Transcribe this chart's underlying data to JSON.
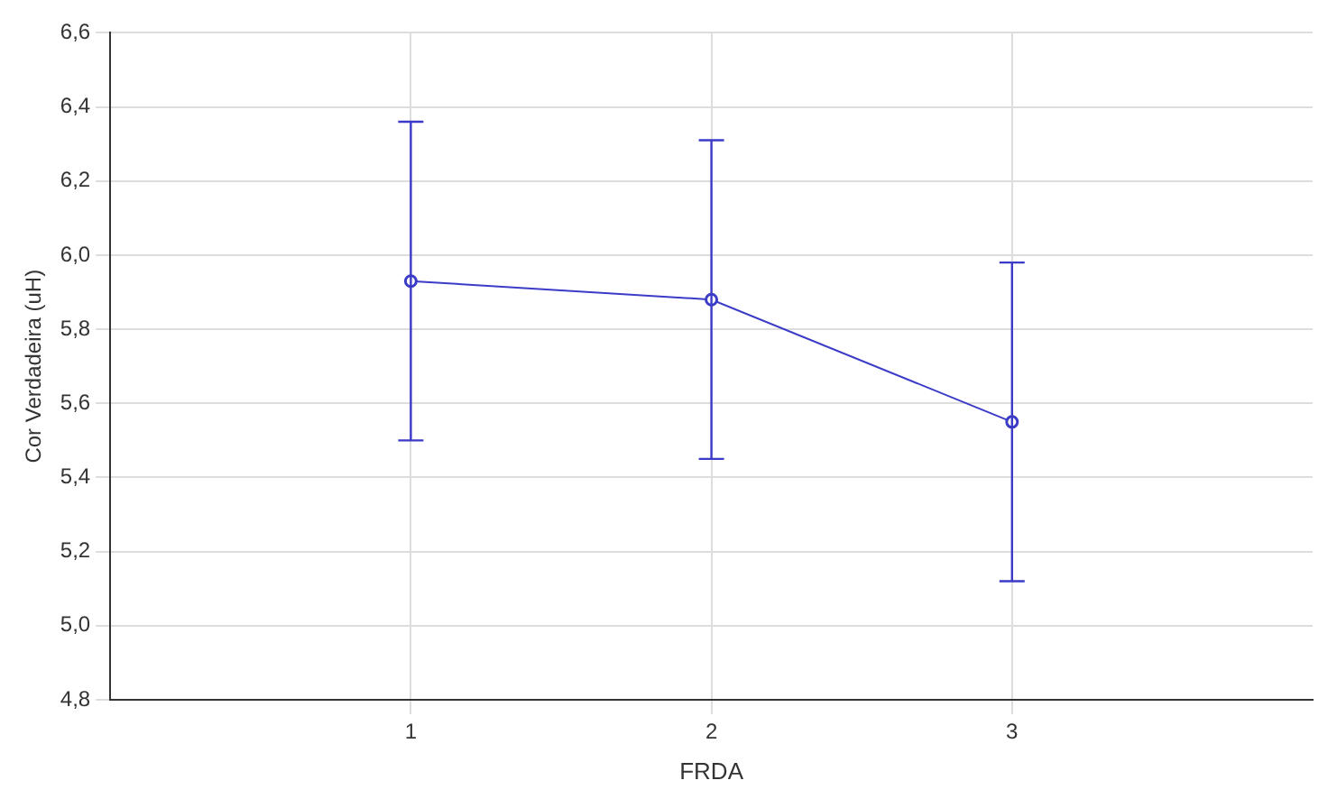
{
  "chart_data": {
    "type": "line",
    "xlabel": "FRDA",
    "ylabel": "Cor Verdadeira (uH)",
    "x": [
      1,
      2,
      3
    ],
    "series": [
      {
        "color": "#3b3bc8",
        "values": [
          5.93,
          5.88,
          5.55
        ],
        "errors": [
          0.43,
          0.43,
          0.43
        ]
      }
    ],
    "xlim": [
      0,
      4
    ],
    "xticks": [
      1,
      2,
      3
    ],
    "ylim": [
      4.8,
      6.6
    ],
    "yticks": [
      {
        "value": 4.8,
        "label": "4,8"
      },
      {
        "value": 5.0,
        "label": "5,0"
      },
      {
        "value": 5.2,
        "label": "5,2"
      },
      {
        "value": 5.4,
        "label": "5,4"
      },
      {
        "value": 5.6,
        "label": "5,6"
      },
      {
        "value": 5.8,
        "label": "5,8"
      },
      {
        "value": 6.0,
        "label": "6,0"
      },
      {
        "value": 6.2,
        "label": "6,2"
      },
      {
        "value": 6.4,
        "label": "6,4"
      },
      {
        "value": 6.6,
        "label": "6,6"
      }
    ],
    "grid": true,
    "legend": false,
    "marker": "circle",
    "line_style": "solid"
  }
}
